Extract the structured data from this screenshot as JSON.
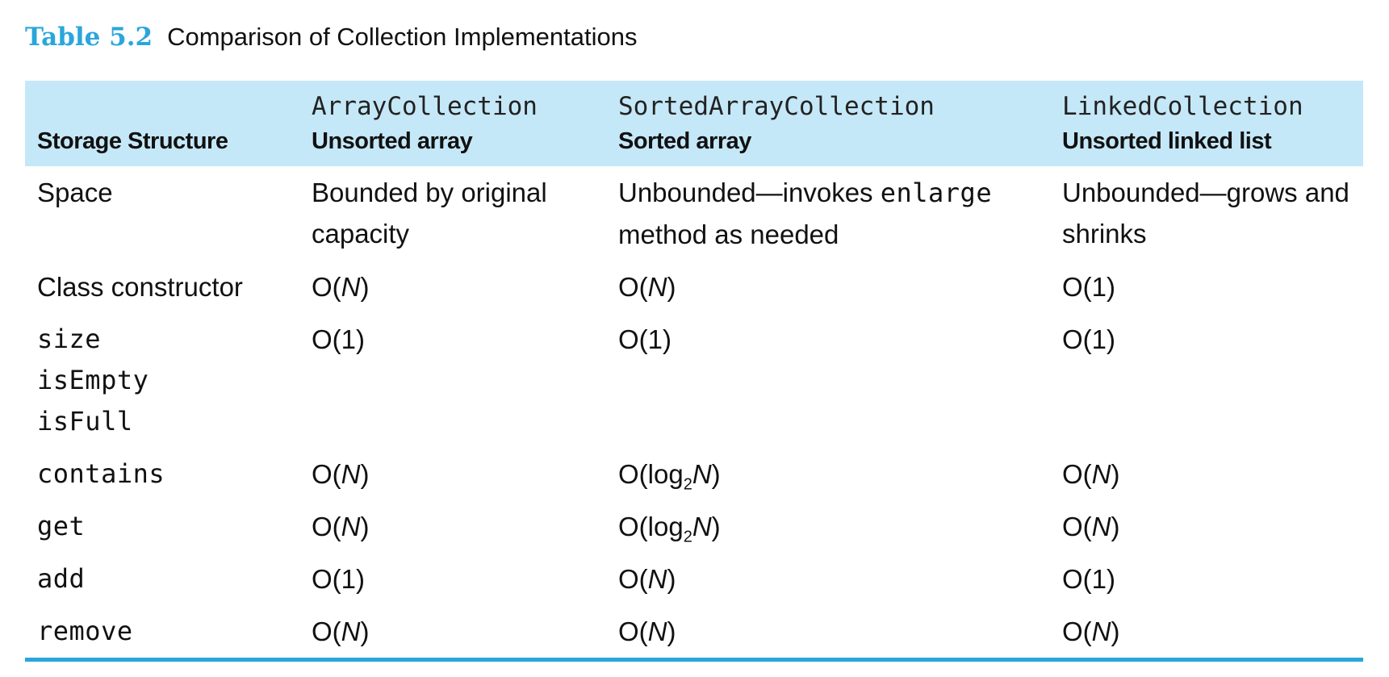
{
  "caption": {
    "label": "Table 5.2",
    "title": "Comparison of Collection Implementations"
  },
  "header": {
    "row_label": "Storage Structure",
    "columns": [
      {
        "impl": "ArrayCollection",
        "structure": "Unsorted array"
      },
      {
        "impl": "SortedArrayCollection",
        "structure": "Sorted array"
      },
      {
        "impl": "LinkedCollection",
        "structure": "Unsorted linked list"
      }
    ]
  },
  "rows": [
    {
      "op": [
        "Space"
      ],
      "op_is_code": false,
      "cells": [
        [
          {
            "t": "Bounded by original capacity"
          }
        ],
        [
          {
            "t": "Unbounded—invokes "
          },
          {
            "t": "enlarge",
            "code": true
          },
          {
            "t": " method as needed"
          }
        ],
        [
          {
            "t": "Unbounded—grows and shrinks"
          }
        ]
      ]
    },
    {
      "op": [
        "Class constructor"
      ],
      "op_is_code": false,
      "cells": [
        [
          {
            "t": "O("
          },
          {
            "t": "N",
            "italic": true
          },
          {
            "t": ")"
          }
        ],
        [
          {
            "t": "O("
          },
          {
            "t": "N",
            "italic": true
          },
          {
            "t": ")"
          }
        ],
        [
          {
            "t": "O(1)"
          }
        ]
      ]
    },
    {
      "op": [
        "size",
        "isEmpty",
        "isFull"
      ],
      "op_is_code": true,
      "cells": [
        [
          {
            "t": "O(1)"
          }
        ],
        [
          {
            "t": "O(1)"
          }
        ],
        [
          {
            "t": "O(1)"
          }
        ]
      ]
    },
    {
      "op": [
        "contains"
      ],
      "op_is_code": true,
      "cells": [
        [
          {
            "t": "O("
          },
          {
            "t": "N",
            "italic": true
          },
          {
            "t": ")"
          }
        ],
        [
          {
            "t": "O(log"
          },
          {
            "t": "2",
            "sub": true
          },
          {
            "t": "N",
            "italic": true
          },
          {
            "t": ")"
          }
        ],
        [
          {
            "t": "O("
          },
          {
            "t": "N",
            "italic": true
          },
          {
            "t": ")"
          }
        ]
      ]
    },
    {
      "op": [
        "get"
      ],
      "op_is_code": true,
      "cells": [
        [
          {
            "t": "O("
          },
          {
            "t": "N",
            "italic": true
          },
          {
            "t": ")"
          }
        ],
        [
          {
            "t": "O(log"
          },
          {
            "t": "2",
            "sub": true
          },
          {
            "t": "N",
            "italic": true
          },
          {
            "t": ")"
          }
        ],
        [
          {
            "t": "O("
          },
          {
            "t": "N",
            "italic": true
          },
          {
            "t": ")"
          }
        ]
      ]
    },
    {
      "op": [
        "add"
      ],
      "op_is_code": true,
      "cells": [
        [
          {
            "t": "O(1)"
          }
        ],
        [
          {
            "t": "O("
          },
          {
            "t": "N",
            "italic": true
          },
          {
            "t": ")"
          }
        ],
        [
          {
            "t": "O(1)"
          }
        ]
      ]
    },
    {
      "op": [
        "remove"
      ],
      "op_is_code": true,
      "cells": [
        [
          {
            "t": "O("
          },
          {
            "t": "N",
            "italic": true
          },
          {
            "t": ")"
          }
        ],
        [
          {
            "t": "O("
          },
          {
            "t": "N",
            "italic": true
          },
          {
            "t": ")"
          }
        ],
        [
          {
            "t": "O("
          },
          {
            "t": "N",
            "italic": true
          },
          {
            "t": ")"
          }
        ]
      ]
    }
  ],
  "colors": {
    "accent": "#2aa6dc",
    "header_bg": "#c5e8f8"
  }
}
